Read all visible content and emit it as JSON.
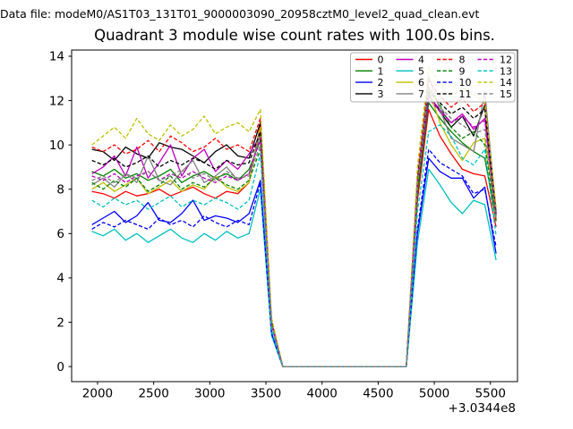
{
  "header": {
    "data_file_line": "Data file: modeM0/AS1T03_131T01_9000003090_20958cztM0_level2_quad_clean.evt",
    "title": "Quadrant 3 module wise count rates with 100.0s bins."
  },
  "chart_data": {
    "type": "line",
    "title": "Quadrant 3 module wise count rates with 100.0s bins.",
    "xlabel": "",
    "ylabel": "",
    "x_offset_text": "+3.0344e8",
    "xlim": [
      1769,
      5741
    ],
    "ylim": [
      -0.68,
      14.28
    ],
    "xticks": [
      2000,
      2500,
      3000,
      3500,
      4000,
      4500,
      5000,
      5500
    ],
    "yticks": [
      0,
      2,
      4,
      6,
      8,
      10,
      12,
      14
    ],
    "grid": false,
    "legend_position": "upper right",
    "legend_ncol": 4,
    "x": [
      1950,
      2050,
      2150,
      2250,
      2350,
      2450,
      2550,
      2650,
      2750,
      2850,
      2950,
      3050,
      3150,
      3250,
      3350,
      3450,
      3550,
      3650,
      3750,
      3850,
      3950,
      4050,
      4150,
      4250,
      4350,
      4450,
      4550,
      4650,
      4750,
      4850,
      4950,
      5050,
      5150,
      5250,
      5350,
      5450,
      5550
    ],
    "series": [
      {
        "name": "0",
        "color": "#ff0000",
        "linestyle": "solid",
        "values": [
          7.9,
          7.8,
          7.6,
          7.9,
          7.7,
          7.8,
          8.0,
          7.7,
          7.9,
          8.1,
          7.8,
          7.6,
          7.9,
          7.8,
          8.3,
          10.9,
          1.9,
          0,
          0,
          0,
          0,
          0,
          0,
          0,
          0,
          0,
          0,
          0,
          0,
          7.5,
          11.6,
          10.4,
          9.6,
          8.9,
          8.7,
          8.6,
          6.3
        ]
      },
      {
        "name": "1",
        "color": "#008000",
        "linestyle": "solid",
        "values": [
          8.8,
          8.6,
          8.9,
          8.5,
          8.7,
          8.4,
          8.6,
          8.9,
          8.3,
          8.6,
          8.8,
          8.5,
          8.7,
          8.4,
          8.9,
          10.2,
          2.0,
          0,
          0,
          0,
          0,
          0,
          0,
          0,
          0,
          0,
          0,
          0,
          0,
          7.8,
          11.9,
          11.2,
          10.6,
          10.1,
          9.7,
          9.4,
          6.6
        ]
      },
      {
        "name": "2",
        "color": "#0000ff",
        "linestyle": "solid",
        "values": [
          6.4,
          6.7,
          7.0,
          6.5,
          6.8,
          7.4,
          6.6,
          6.5,
          6.9,
          7.5,
          6.6,
          6.8,
          6.7,
          6.5,
          6.9,
          8.4,
          1.5,
          0,
          0,
          0,
          0,
          0,
          0,
          0,
          0,
          0,
          0,
          0,
          0,
          6.0,
          9.4,
          8.8,
          8.5,
          8.5,
          7.6,
          8.1,
          5.1
        ]
      },
      {
        "name": "3",
        "color": "#000000",
        "linestyle": "solid",
        "values": [
          9.8,
          9.7,
          9.3,
          9.9,
          9.6,
          9.4,
          10.1,
          9.9,
          9.8,
          9.5,
          9.2,
          9.7,
          10.0,
          9.5,
          9.4,
          11.0,
          2.0,
          0,
          0,
          0,
          0,
          0,
          0,
          0,
          0,
          0,
          0,
          0,
          0,
          8.0,
          12.3,
          11.5,
          10.8,
          11.3,
          10.4,
          11.8,
          6.8
        ]
      },
      {
        "name": "4",
        "color": "#bf00bf",
        "linestyle": "solid",
        "values": [
          8.7,
          9.0,
          9.5,
          8.6,
          9.9,
          8.5,
          9.2,
          10.0,
          8.6,
          9.4,
          9.8,
          8.8,
          9.3,
          8.9,
          9.6,
          10.4,
          2.0,
          0,
          0,
          0,
          0,
          0,
          0,
          0,
          0,
          0,
          0,
          0,
          0,
          8.2,
          12.2,
          11.6,
          11.0,
          11.4,
          10.7,
          11.2,
          6.9
        ]
      },
      {
        "name": "5",
        "color": "#00bfbf",
        "linestyle": "solid",
        "values": [
          6.1,
          5.9,
          6.2,
          5.7,
          6.0,
          5.6,
          5.9,
          6.2,
          5.8,
          5.6,
          6.0,
          5.7,
          6.1,
          5.8,
          6.0,
          8.0,
          1.4,
          0,
          0,
          0,
          0,
          0,
          0,
          0,
          0,
          0,
          0,
          0,
          0,
          5.6,
          8.9,
          8.2,
          7.4,
          6.9,
          7.5,
          7.3,
          4.8
        ]
      },
      {
        "name": "6",
        "color": "#bfbf00",
        "linestyle": "solid",
        "values": [
          8.0,
          8.3,
          7.9,
          8.2,
          8.5,
          7.8,
          8.1,
          8.4,
          7.9,
          8.2,
          8.0,
          8.6,
          8.1,
          7.9,
          8.3,
          10.8,
          1.9,
          0,
          0,
          0,
          0,
          0,
          0,
          0,
          0,
          0,
          0,
          0,
          0,
          8.1,
          12.5,
          11.0,
          10.0,
          9.3,
          10.1,
          10.3,
          6.7
        ]
      },
      {
        "name": "7",
        "color": "#808080",
        "linestyle": "solid",
        "values": [
          8.2,
          8.5,
          8.1,
          8.7,
          8.3,
          9.5,
          8.4,
          8.2,
          8.8,
          9.3,
          8.3,
          8.6,
          9.0,
          8.4,
          8.7,
          10.5,
          2.0,
          0,
          0,
          0,
          0,
          0,
          0,
          0,
          0,
          0,
          0,
          0,
          0,
          8.5,
          13.1,
          11.6,
          10.3,
          10.0,
          9.7,
          12.4,
          7.0
        ]
      },
      {
        "name": "8",
        "color": "#ff0000",
        "linestyle": "dashed",
        "values": [
          9.9,
          9.7,
          10.0,
          9.6,
          9.8,
          10.2,
          9.7,
          10.4,
          10.1,
          9.7,
          9.9,
          10.3,
          9.8,
          10.0,
          9.7,
          11.2,
          2.1,
          0,
          0,
          0,
          0,
          0,
          0,
          0,
          0,
          0,
          0,
          0,
          0,
          8.6,
          12.9,
          12.2,
          11.7,
          12.1,
          11.5,
          11.9,
          6.5
        ]
      },
      {
        "name": "9",
        "color": "#008000",
        "linestyle": "dashed",
        "values": [
          8.3,
          8.0,
          8.4,
          8.1,
          8.5,
          7.9,
          8.2,
          8.6,
          8.0,
          8.3,
          8.1,
          8.5,
          8.2,
          8.0,
          8.4,
          9.8,
          1.9,
          0,
          0,
          0,
          0,
          0,
          0,
          0,
          0,
          0,
          0,
          0,
          0,
          8.0,
          12.6,
          11.8,
          10.8,
          10.3,
          10.6,
          10.0,
          6.6
        ]
      },
      {
        "name": "10",
        "color": "#0000ff",
        "linestyle": "dashed",
        "values": [
          6.2,
          6.5,
          6.3,
          6.6,
          6.4,
          6.2,
          6.7,
          6.4,
          6.6,
          6.3,
          6.8,
          6.5,
          6.3,
          6.6,
          6.4,
          8.3,
          1.5,
          0,
          0,
          0,
          0,
          0,
          0,
          0,
          0,
          0,
          0,
          0,
          0,
          6.2,
          9.8,
          9.2,
          8.9,
          8.6,
          7.8,
          8.0,
          5.4
        ]
      },
      {
        "name": "11",
        "color": "#000000",
        "linestyle": "dashed",
        "values": [
          9.3,
          9.1,
          9.4,
          9.0,
          9.2,
          9.5,
          9.0,
          9.3,
          9.1,
          9.4,
          9.2,
          8.9,
          9.3,
          9.1,
          9.2,
          10.6,
          2.0,
          0,
          0,
          0,
          0,
          0,
          0,
          0,
          0,
          0,
          0,
          0,
          0,
          8.4,
          12.4,
          11.9,
          11.4,
          11.7,
          11.2,
          11.6,
          6.9
        ]
      },
      {
        "name": "12",
        "color": "#bf00bf",
        "linestyle": "dashed",
        "values": [
          8.6,
          8.4,
          8.7,
          8.3,
          8.6,
          8.8,
          8.4,
          8.7,
          8.5,
          8.8,
          8.5,
          8.3,
          8.6,
          8.4,
          8.7,
          10.3,
          1.9,
          0,
          0,
          0,
          0,
          0,
          0,
          0,
          0,
          0,
          0,
          0,
          0,
          8.3,
          12.1,
          11.5,
          11.0,
          11.3,
          10.8,
          11.1,
          6.8
        ]
      },
      {
        "name": "13",
        "color": "#00bfbf",
        "linestyle": "dashed",
        "values": [
          7.5,
          7.2,
          7.6,
          7.3,
          7.5,
          7.1,
          7.4,
          7.7,
          7.2,
          7.5,
          7.3,
          7.6,
          7.4,
          7.1,
          7.5,
          9.6,
          1.7,
          0,
          0,
          0,
          0,
          0,
          0,
          0,
          0,
          0,
          0,
          0,
          0,
          7.0,
          10.6,
          10.9,
          10.4,
          9.4,
          9.1,
          9.8,
          5.9
        ]
      },
      {
        "name": "14",
        "color": "#bfbf00",
        "linestyle": "dashed",
        "values": [
          10.0,
          10.4,
          10.8,
          10.3,
          11.2,
          10.5,
          10.2,
          10.9,
          10.4,
          10.7,
          11.3,
          10.5,
          10.8,
          11.0,
          10.6,
          11.6,
          2.2,
          0,
          0,
          0,
          0,
          0,
          0,
          0,
          0,
          0,
          0,
          0,
          0,
          9.0,
          13.5,
          12.8,
          12.1,
          12.6,
          12.3,
          11.9,
          7.2
        ]
      },
      {
        "name": "15",
        "color": "#808080",
        "linestyle": "dashed",
        "values": [
          8.4,
          8.6,
          8.3,
          8.7,
          8.5,
          8.8,
          8.4,
          8.6,
          8.9,
          8.5,
          8.7,
          8.4,
          8.8,
          8.5,
          8.6,
          10.0,
          1.9,
          0,
          0,
          0,
          0,
          0,
          0,
          0,
          0,
          0,
          0,
          0,
          0,
          8.2,
          12.6,
          11.7,
          11.2,
          10.9,
          10.5,
          10.7,
          6.7
        ]
      }
    ]
  },
  "colors": {
    "spine": "#000000",
    "legend_border": "#b0b0b0",
    "background": "#ffffff"
  }
}
